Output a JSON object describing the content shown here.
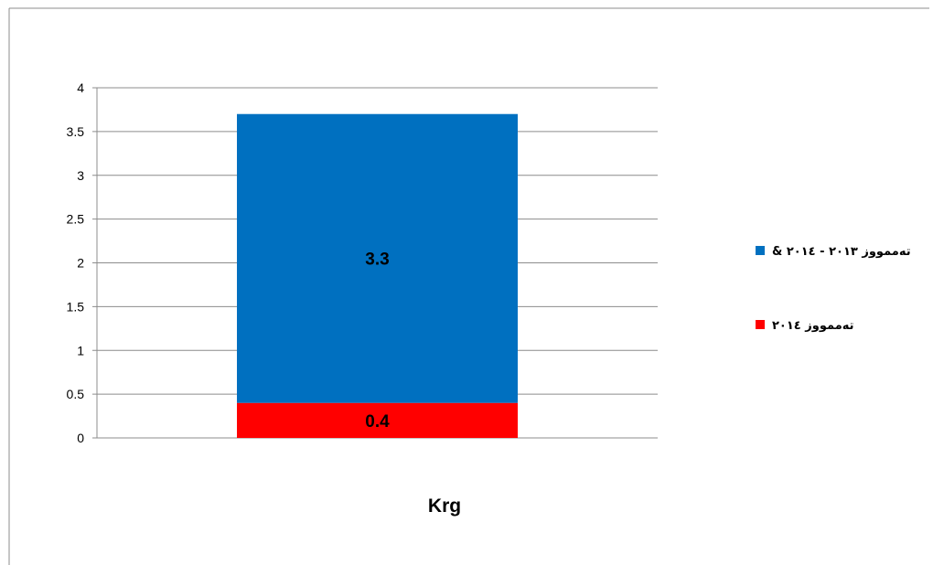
{
  "chart_data": {
    "type": "bar",
    "stacked": true,
    "categories": [
      "Krg"
    ],
    "series": [
      {
        "name": "تەممووز ٢٠١٤",
        "color": "#ff0000",
        "values": [
          0.4
        ]
      },
      {
        "name": "تەممووز ٢٠١٣ - ٢٠١٤ &",
        "color": "#0070c0",
        "values": [
          3.3
        ]
      }
    ],
    "data_labels": [
      "0.4",
      "3.3"
    ],
    "ylim": [
      0,
      4
    ],
    "yticks": [
      "0",
      "0.5",
      "1",
      "1.5",
      "2",
      "2.5",
      "3",
      "3.5",
      "4"
    ],
    "grid": true,
    "legend_position": "right"
  }
}
